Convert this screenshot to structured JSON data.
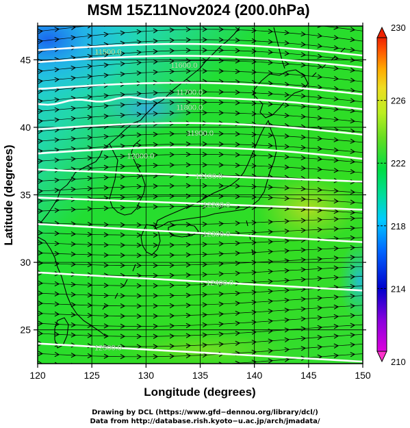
{
  "title": "MSM 15Z11Nov2024 (200.0hPa)",
  "map": {
    "xlabel": "Longitude (degrees)",
    "ylabel": "Latitude  (degrees)",
    "xlim": [
      120,
      150
    ],
    "ylim": [
      22.5,
      47.5
    ],
    "x_ticks": [
      120,
      125,
      130,
      135,
      140,
      145,
      150
    ],
    "y_ticks": [
      25,
      30,
      35,
      40,
      45
    ],
    "colors": {
      "field_low": "#00b8ff",
      "field_mid": "#22dd22",
      "field_high": "#aadd22",
      "coast": "#000000",
      "contour": "#ffffff",
      "grid": "#000000"
    },
    "contours": [
      {
        "label": "11500.0",
        "lon": 126.5,
        "lat": 45.6
      },
      {
        "label": "11600.0",
        "lon": 133.5,
        "lat": 44.6
      },
      {
        "label": "11700.0",
        "lon": 134.0,
        "lat": 42.6
      },
      {
        "label": "11800.0",
        "lon": 134.0,
        "lat": 41.5
      },
      {
        "label": "11900.0",
        "lon": 135.0,
        "lat": 39.6
      },
      {
        "label": "12000.0",
        "lon": 129.5,
        "lat": 37.9
      },
      {
        "label": "12100.0",
        "lon": 135.8,
        "lat": 36.4
      },
      {
        "label": "12200.0",
        "lon": 136.5,
        "lat": 34.3
      },
      {
        "label": "12300.0",
        "lon": 136.5,
        "lat": 32.1
      },
      {
        "label": "12400.0",
        "lon": 136.8,
        "lat": 28.5
      },
      {
        "label": "12500.0",
        "lon": 126.5,
        "lat": 23.7
      }
    ]
  },
  "colorbar": {
    "min": 210,
    "max": 230,
    "labels": [
      "230",
      "226",
      "222",
      "218",
      "214",
      "210"
    ],
    "label_values": [
      230,
      226,
      222,
      218,
      214,
      210
    ],
    "dashed_values": [
      226,
      222,
      218,
      214
    ]
  },
  "credits": {
    "line1": "Drawing by DCL (https://www.gfd−dennou.org/library/dcl/)",
    "line2": "Data from http://database.rish.kyoto−u.ac.jp/arch/jmadata/"
  }
}
